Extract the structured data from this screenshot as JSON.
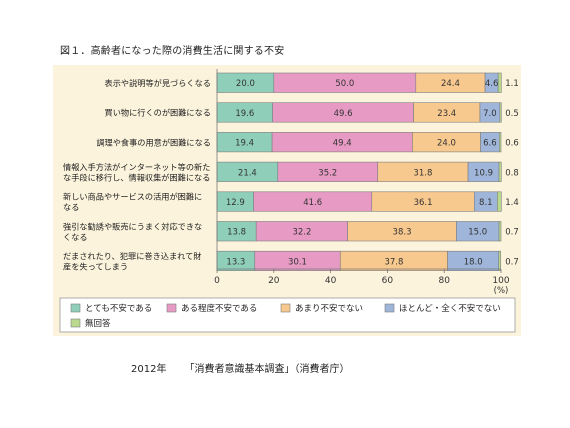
{
  "title": "図１．高齢者になった際の消費生活に関する不安",
  "source": {
    "year": "2012年",
    "survey": "「消費者意識基本調査」（消費者庁）"
  },
  "chart_data": {
    "type": "bar",
    "orientation": "horizontal",
    "stacked": true,
    "xlim": [
      0,
      100
    ],
    "x_ticks": [
      0,
      20,
      40,
      60,
      80,
      100
    ],
    "x_unit": "(%)",
    "categories": [
      [
        "表示や説明等が見づらくなる"
      ],
      [
        "買い物に行くのが困難になる"
      ],
      [
        "調理や食事の用意が困難になる"
      ],
      [
        "情報入手方法がインターネット等の新た",
        "な手段に移行し、情報収集が困難になる"
      ],
      [
        "新しい商品やサービスの活用が困難に",
        "なる"
      ],
      [
        "強引な勧誘や販売にうまく対応できな",
        "くなる"
      ],
      [
        "だまされたり、犯罪に巻き込まれて財",
        "産を失ってしまう"
      ]
    ],
    "series": [
      {
        "name": "とても不安である",
        "color": "#8fcfba",
        "values": [
          20.0,
          19.6,
          19.4,
          21.4,
          12.9,
          13.8,
          13.3
        ]
      },
      {
        "name": "ある程度不安である",
        "color": "#e79bc4",
        "values": [
          50.0,
          49.6,
          49.4,
          35.2,
          41.6,
          32.2,
          30.1
        ]
      },
      {
        "name": "あまり不安でない",
        "color": "#f8c98e",
        "values": [
          24.4,
          23.4,
          24.0,
          31.8,
          36.1,
          38.3,
          37.8
        ]
      },
      {
        "name": "ほとんど・全く不安でない",
        "color": "#9fb6da",
        "values": [
          4.6,
          7.0,
          6.6,
          10.9,
          8.1,
          15.0,
          18.0
        ]
      },
      {
        "name": "無回答",
        "color": "#b9d98c",
        "values": [
          1.1,
          0.5,
          0.6,
          0.8,
          1.4,
          0.7,
          0.7
        ]
      }
    ],
    "label_texts": [
      [
        "20.0",
        "50.0",
        "24.4",
        "4.6",
        "1.1"
      ],
      [
        "19.6",
        "49.6",
        "23.4",
        "7.0",
        "0.5"
      ],
      [
        "19.4",
        "49.4",
        "24.0",
        "6.6",
        "0.6"
      ],
      [
        "21.4",
        "35.2",
        "31.8",
        "10.9",
        "0.8"
      ],
      [
        "12.9",
        "41.6",
        "36.1",
        "8.1",
        "1.4"
      ],
      [
        "13.8",
        "32.2",
        "38.3",
        "15.0",
        "0.7"
      ],
      [
        "13.3",
        "30.1",
        "37.8",
        "18.0",
        "0.7"
      ]
    ],
    "legend_position": "bottom"
  }
}
